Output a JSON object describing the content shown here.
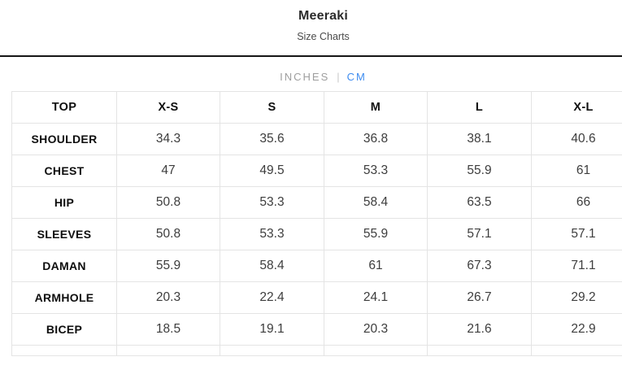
{
  "header": {
    "title": "Meeraki",
    "subtitle": "Size Charts"
  },
  "unit_toggle": {
    "divider": "|",
    "options": [
      {
        "label": "INCHES",
        "active": false
      },
      {
        "label": "CM",
        "active": true
      }
    ]
  },
  "table": {
    "columns": [
      "TOP",
      "X-S",
      "S",
      "M",
      "L",
      "X-L"
    ],
    "rows": [
      {
        "label": "SHOULDER",
        "values": [
          "34.3",
          "35.6",
          "36.8",
          "38.1",
          "40.6"
        ]
      },
      {
        "label": "CHEST",
        "values": [
          "47",
          "49.5",
          "53.3",
          "55.9",
          "61"
        ]
      },
      {
        "label": "HIP",
        "values": [
          "50.8",
          "53.3",
          "58.4",
          "63.5",
          "66"
        ]
      },
      {
        "label": "SLEEVES",
        "values": [
          "50.8",
          "53.3",
          "55.9",
          "57.1",
          "57.1"
        ]
      },
      {
        "label": "DAMAN",
        "values": [
          "55.9",
          "58.4",
          "61",
          "67.3",
          "71.1"
        ]
      },
      {
        "label": "ARMHOLE",
        "values": [
          "20.3",
          "22.4",
          "24.1",
          "26.7",
          "29.2"
        ]
      },
      {
        "label": "BICEP",
        "values": [
          "18.5",
          "19.1",
          "20.3",
          "21.6",
          "22.9"
        ]
      }
    ]
  },
  "colors": {
    "accent_blue": "#3e8cf0",
    "inactive_gray": "#9e9e9e",
    "table_border": "#e4e4e4",
    "divider_line": "#161616"
  }
}
